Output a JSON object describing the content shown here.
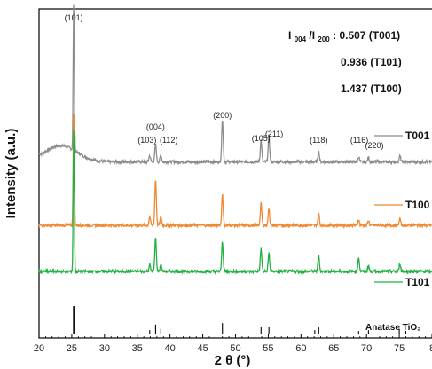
{
  "chart_data": {
    "type": "line",
    "xlabel": "2 θ (°)",
    "ylabel": "Intensity (a.u.)",
    "xlim": [
      20,
      80
    ],
    "x_ticks": [
      "20",
      "25",
      "30",
      "35",
      "40",
      "45",
      "50",
      "55",
      "60",
      "65",
      "70",
      "75",
      "8"
    ],
    "grid": false,
    "legend_placement": "right",
    "series": [
      {
        "name": "T001",
        "color": "#8c8c8c",
        "offset": 2.5,
        "baseline": 0,
        "broad": {
          "start": 0.14,
          "peak": 0.28,
          "center": 23.3,
          "width": 3.5
        },
        "peaks": [
          [
            25.3,
            2.6
          ],
          [
            36.9,
            0.11
          ],
          [
            37.8,
            0.3
          ],
          [
            38.6,
            0.12
          ],
          [
            48.0,
            0.75
          ],
          [
            53.9,
            0.38
          ],
          [
            55.1,
            0.45
          ],
          [
            62.7,
            0.18
          ],
          [
            68.8,
            0.09
          ],
          [
            70.3,
            0.08
          ],
          [
            75.1,
            0.1
          ]
        ]
      },
      {
        "name": "T100",
        "color": "#ed8a33",
        "offset": 1.4,
        "baseline": 0,
        "broad": {
          "start": 0.0,
          "peak": 0.0,
          "center": 23.0,
          "width": 3.0
        },
        "peaks": [
          [
            25.3,
            2.0
          ],
          [
            36.9,
            0.15
          ],
          [
            37.8,
            0.8
          ],
          [
            38.6,
            0.15
          ],
          [
            48.0,
            0.55
          ],
          [
            53.9,
            0.38
          ],
          [
            55.1,
            0.3
          ],
          [
            62.7,
            0.2
          ],
          [
            68.8,
            0.1
          ],
          [
            70.3,
            0.08
          ],
          [
            75.1,
            0.12
          ]
        ]
      },
      {
        "name": "T101",
        "color": "#22b040",
        "offset": 0.6,
        "baseline": 0,
        "broad": {
          "start": 0.0,
          "peak": 0.0,
          "center": 23.0,
          "width": 3.0
        },
        "peaks": [
          [
            25.3,
            2.5
          ],
          [
            36.9,
            0.12
          ],
          [
            37.8,
            0.58
          ],
          [
            38.6,
            0.12
          ],
          [
            48.0,
            0.52
          ],
          [
            53.9,
            0.4
          ],
          [
            55.1,
            0.32
          ],
          [
            62.7,
            0.28
          ],
          [
            68.8,
            0.25
          ],
          [
            70.3,
            0.1
          ],
          [
            75.1,
            0.14
          ]
        ]
      }
    ],
    "reference": {
      "name": "Anatase TiO₂",
      "lines": [
        [
          25.3,
          1.0
        ],
        [
          36.9,
          0.15
        ],
        [
          37.8,
          0.35
        ],
        [
          38.6,
          0.2
        ],
        [
          48.0,
          0.4
        ],
        [
          53.9,
          0.25
        ],
        [
          55.1,
          0.25
        ],
        [
          62.1,
          0.15
        ],
        [
          62.7,
          0.25
        ],
        [
          68.8,
          0.12
        ],
        [
          70.3,
          0.15
        ],
        [
          75.0,
          0.2
        ],
        [
          76.0,
          0.12
        ]
      ]
    },
    "peak_labels": [
      {
        "text": "(101)",
        "x": 25.3
      },
      {
        "text": "(004)",
        "x": 37.8
      },
      {
        "text": "(103)",
        "x": 36.5
      },
      {
        "text": "(112)",
        "x": 39.8
      },
      {
        "text": "(200)",
        "x": 48.0
      },
      {
        "text": "(105)",
        "x": 53.9
      },
      {
        "text": "(211)",
        "x": 55.9
      },
      {
        "text": "(118)",
        "x": 62.7
      },
      {
        "text": "(116)",
        "x": 68.9
      },
      {
        "text": "(220)",
        "x": 71.2
      }
    ],
    "annotation": {
      "prefix": "I",
      "sub1": "004",
      "mid": "/I",
      "sub2": "200",
      "suffix": ": 0.507 (T001)",
      "lines": [
        "0.936 (T101)",
        "1.437 (T100)"
      ]
    }
  }
}
